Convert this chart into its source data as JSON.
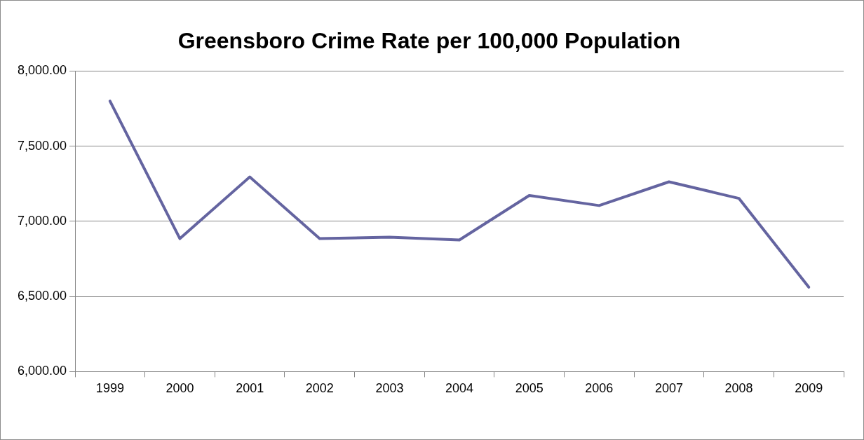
{
  "chart_data": {
    "type": "line",
    "title": "Greensboro Crime Rate per 100,000 Population",
    "categories": [
      "1999",
      "2000",
      "2001",
      "2002",
      "2003",
      "2004",
      "2005",
      "2006",
      "2007",
      "2008",
      "2009"
    ],
    "series": [
      {
        "color": "#6464a0",
        "values": [
          7800,
          6885,
          7295,
          6885,
          6895,
          6876,
          7172,
          7105,
          7263,
          7153,
          6562
        ]
      }
    ],
    "ylim": [
      6000,
      8000
    ],
    "yticks": [
      {
        "value": 6000,
        "label": "6,000.00"
      },
      {
        "value": 6500,
        "label": "6,500.00"
      },
      {
        "value": 7000,
        "label": "7,000.00"
      },
      {
        "value": 7500,
        "label": "7,500.00"
      },
      {
        "value": 8000,
        "label": "8,000.00"
      }
    ],
    "grid": "y",
    "legend": false,
    "marker": "none",
    "line_style": "solid"
  }
}
